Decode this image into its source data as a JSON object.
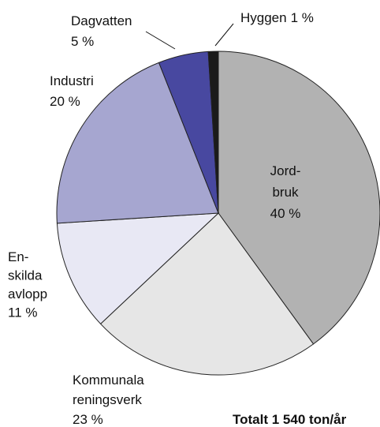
{
  "chart_data": {
    "type": "pie",
    "categories": [
      "Jord-\nbruk",
      "Kommunala\nreningsverk",
      "En-\nskilda\navlopp",
      "Industri",
      "Dagvatten",
      "Hyggen"
    ],
    "values": [
      40,
      23,
      11,
      20,
      5,
      1
    ],
    "value_labels": [
      "40 %",
      "23 %",
      "11 %",
      "20 %",
      "5 %",
      "1 %"
    ],
    "colors": [
      "#b2b2b2",
      "#e6e6e6",
      "#e8e8f4",
      "#a6a6d0",
      "#4848a0",
      "#1a1a1a"
    ],
    "annotation": "Totalt 1 540 ton/år"
  }
}
